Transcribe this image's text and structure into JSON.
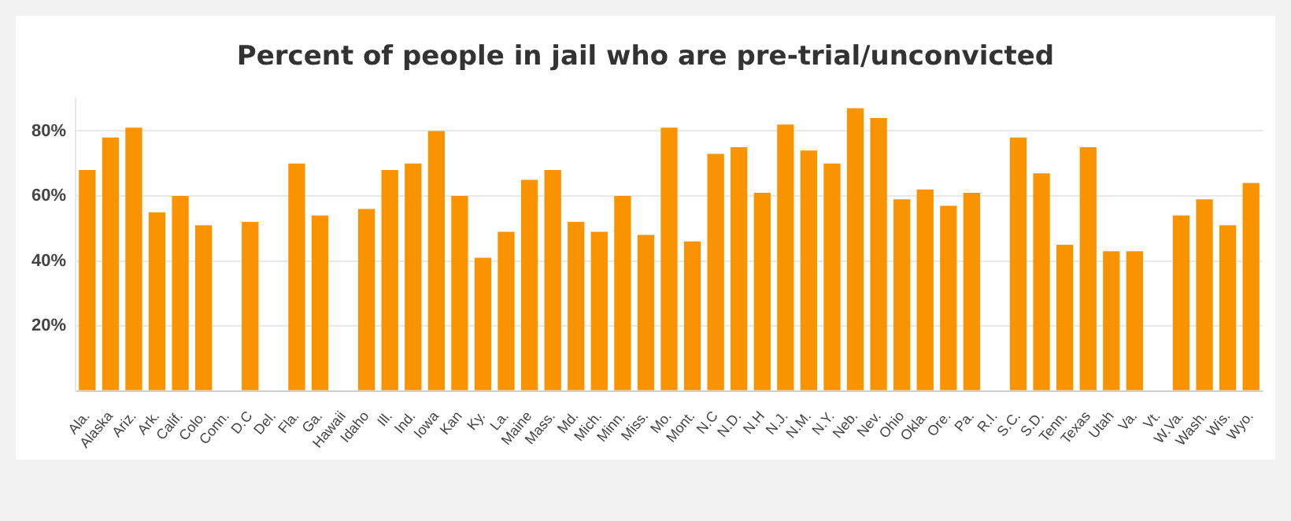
{
  "chart_data": {
    "type": "bar",
    "title": "Percent of people in jail who are pre-trial/unconvicted",
    "categories": [
      "Ala.",
      "Alaska",
      "Ariz.",
      "Ark.",
      "Calif.",
      "Colo.",
      "Conn.",
      "D.C",
      "Del.",
      "Fla.",
      "Ga.",
      "Hawaii",
      "Idaho",
      "Ill.",
      "Ind.",
      "Iowa",
      "Kan",
      "Ky.",
      "La.",
      "Maine",
      "Mass.",
      "Md.",
      "Mich.",
      "Minn.",
      "Miss.",
      "Mo.",
      "Mont.",
      "N.C",
      "N.D.",
      "N.H",
      "N.J.",
      "N.M.",
      "N.Y.",
      "Neb.",
      "Nev.",
      "Ohio",
      "Okla.",
      "Ore.",
      "Pa.",
      "R.I.",
      "S.C.",
      "S.D.",
      "Tenn.",
      "Texas",
      "Utah",
      "Va.",
      "Vt.",
      "W.Va.",
      "Wash.",
      "Wis.",
      "Wyo."
    ],
    "values": [
      68,
      78,
      81,
      55,
      60,
      51,
      null,
      52,
      null,
      70,
      54,
      null,
      56,
      68,
      70,
      80,
      60,
      41,
      49,
      65,
      68,
      52,
      49,
      60,
      48,
      81,
      46,
      73,
      75,
      61,
      82,
      74,
      70,
      87,
      84,
      59,
      62,
      57,
      61,
      null,
      78,
      67,
      45,
      75,
      43,
      43,
      null,
      54,
      59,
      51,
      64
    ],
    "color": "#fa9300",
    "ylim": [
      0,
      90
    ],
    "yticks": [
      {
        "value": 0,
        "label": null
      },
      {
        "value": 20,
        "label": "20%"
      },
      {
        "value": 40,
        "label": "40%"
      },
      {
        "value": 60,
        "label": "60%"
      },
      {
        "value": 80,
        "label": "80%"
      }
    ],
    "grid": "y"
  }
}
